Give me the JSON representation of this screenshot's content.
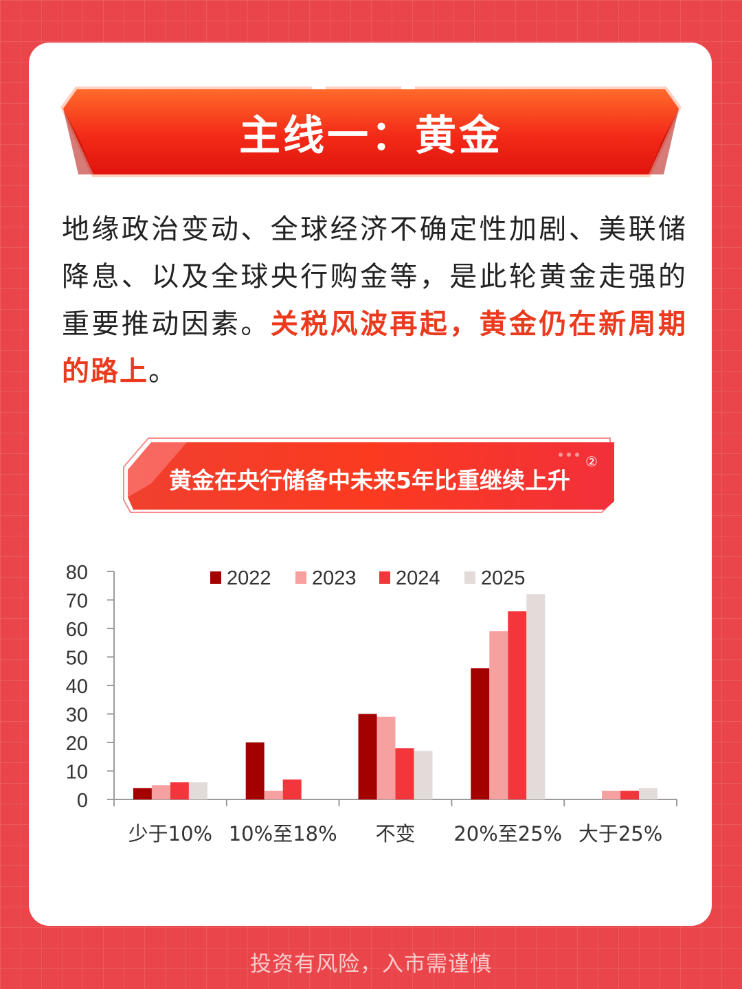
{
  "header": {
    "title": "主线一：黄金"
  },
  "intro": {
    "text_plain": "地缘政治变动、全球经济不确定性加剧、美联储降息、以及全球央行购金等，是此轮黄金走强的重要推动因素。",
    "text_highlight": "关税风波再起，黄金仍在新周期的路上",
    "text_end": "。"
  },
  "subheader": {
    "title": "黄金在央行储备中未来5年比重继续上升",
    "note": "②"
  },
  "colors": {
    "accent": "#ea3b1e",
    "background": "#e9454a",
    "series": [
      "#a30000",
      "#f7a0a0",
      "#f2363c",
      "#e3dbd9"
    ]
  },
  "chart_data": {
    "type": "bar",
    "title": "",
    "xlabel": "",
    "ylabel": "",
    "ylim": [
      0,
      80
    ],
    "yticks": [
      "0",
      "10",
      "20",
      "30",
      "40",
      "50",
      "60",
      "70",
      "80"
    ],
    "grid": false,
    "legend_position": "top",
    "categories": [
      "少于10%",
      "10%至18%",
      "不变",
      "20%至25%",
      "大于25%"
    ],
    "series": [
      {
        "name": "2022",
        "values": [
          4,
          20,
          30,
          46,
          0
        ]
      },
      {
        "name": "2023",
        "values": [
          5,
          3,
          29,
          59,
          3
        ]
      },
      {
        "name": "2024",
        "values": [
          6,
          7,
          18,
          66,
          3
        ]
      },
      {
        "name": "2025",
        "values": [
          6,
          0,
          17,
          72,
          4
        ]
      }
    ]
  },
  "footer": {
    "text": "投资有风险，入市需谨慎"
  }
}
